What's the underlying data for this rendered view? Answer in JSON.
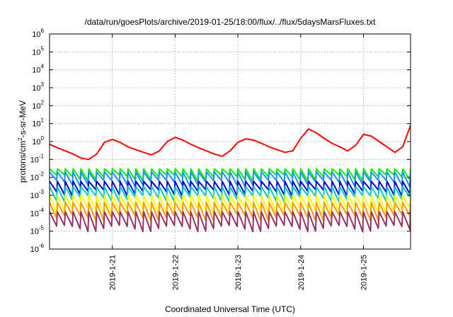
{
  "chart_data": {
    "type": "line",
    "title": "/data/run/goesPlots/archive/2019-01-25/18:00/flux/../flux/5daysMarsFluxes.txt",
    "xlabel": "Coordinated Universal Time (UTC)",
    "ylabel": {
      "pre": "protons/cm",
      "sup": "2",
      "post": "-s-sr-MeV"
    },
    "x_range": [
      "2019-01-20T00:00",
      "2019-01-25T18:00"
    ],
    "x_tick_labels": [
      "2019-1-21",
      "2019-1-22",
      "2019-1-23",
      "2019-1-24",
      "2019-1-25"
    ],
    "x_tick_values": [
      "2019-01-21T00:00",
      "2019-01-22T00:00",
      "2019-01-23T00:00",
      "2019-01-24T00:00",
      "2019-01-25T00:00"
    ],
    "y_scale": "log",
    "y_range": [
      1e-06,
      1000000.0
    ],
    "y_tick_exponents": [
      -6,
      -5,
      -4,
      -3,
      -2,
      -1,
      0,
      1,
      2,
      3,
      4,
      5,
      6
    ],
    "grid": true,
    "legend": "none",
    "series": [
      {
        "color": "#ff0000",
        "x": [
          "2019-01-20T00:00",
          "2019-01-20T03:00",
          "2019-01-20T06:00",
          "2019-01-20T09:00",
          "2019-01-20T12:00",
          "2019-01-20T15:00",
          "2019-01-20T18:00",
          "2019-01-20T21:00",
          "2019-01-21T00:00",
          "2019-01-21T03:00",
          "2019-01-21T06:00",
          "2019-01-21T09:00",
          "2019-01-21T12:00",
          "2019-01-21T15:00",
          "2019-01-21T18:00",
          "2019-01-21T21:00",
          "2019-01-22T00:00",
          "2019-01-22T03:00",
          "2019-01-22T06:00",
          "2019-01-22T09:00",
          "2019-01-22T12:00",
          "2019-01-22T15:00",
          "2019-01-22T18:00",
          "2019-01-22T21:00",
          "2019-01-23T00:00",
          "2019-01-23T03:00",
          "2019-01-23T06:00",
          "2019-01-23T09:00",
          "2019-01-23T12:00",
          "2019-01-23T15:00",
          "2019-01-23T18:00",
          "2019-01-23T21:00",
          "2019-01-24T00:00",
          "2019-01-24T03:00",
          "2019-01-24T06:00",
          "2019-01-24T09:00",
          "2019-01-24T12:00",
          "2019-01-24T15:00",
          "2019-01-24T18:00",
          "2019-01-24T21:00",
          "2019-01-25T00:00",
          "2019-01-25T03:00",
          "2019-01-25T06:00",
          "2019-01-25T09:00",
          "2019-01-25T12:00",
          "2019-01-25T15:00",
          "2019-01-25T18:00"
        ],
        "y": [
          0.7,
          0.45,
          0.3,
          0.2,
          0.12,
          0.1,
          0.2,
          0.9,
          1.3,
          0.9,
          0.5,
          0.35,
          0.25,
          0.18,
          0.3,
          1.0,
          1.7,
          1.2,
          0.7,
          0.45,
          0.3,
          0.2,
          0.15,
          0.3,
          0.9,
          1.4,
          1.2,
          0.8,
          0.5,
          0.35,
          0.25,
          0.3,
          1.5,
          5.0,
          3.0,
          1.5,
          0.8,
          0.5,
          0.3,
          0.6,
          2.5,
          2.0,
          1.0,
          0.5,
          0.25,
          0.5,
          8.0
        ]
      },
      {
        "color": "#00ee00",
        "low": 0.01,
        "high": 0.03
      },
      {
        "color": "#1e90ff",
        "low": 0.005,
        "high": 0.02
      },
      {
        "color": "#0000cd",
        "low": 0.0015,
        "high": 0.006
      },
      {
        "color": "#00c8c8",
        "low": 0.0007,
        "high": 0.003
      },
      {
        "color": "#ffff00",
        "low": 0.00015,
        "high": 0.001
      },
      {
        "color": "#ff9900",
        "low": 6e-05,
        "high": 0.0004
      },
      {
        "color": "#993366",
        "low": 1.5e-05,
        "high": 0.00012
      }
    ]
  }
}
